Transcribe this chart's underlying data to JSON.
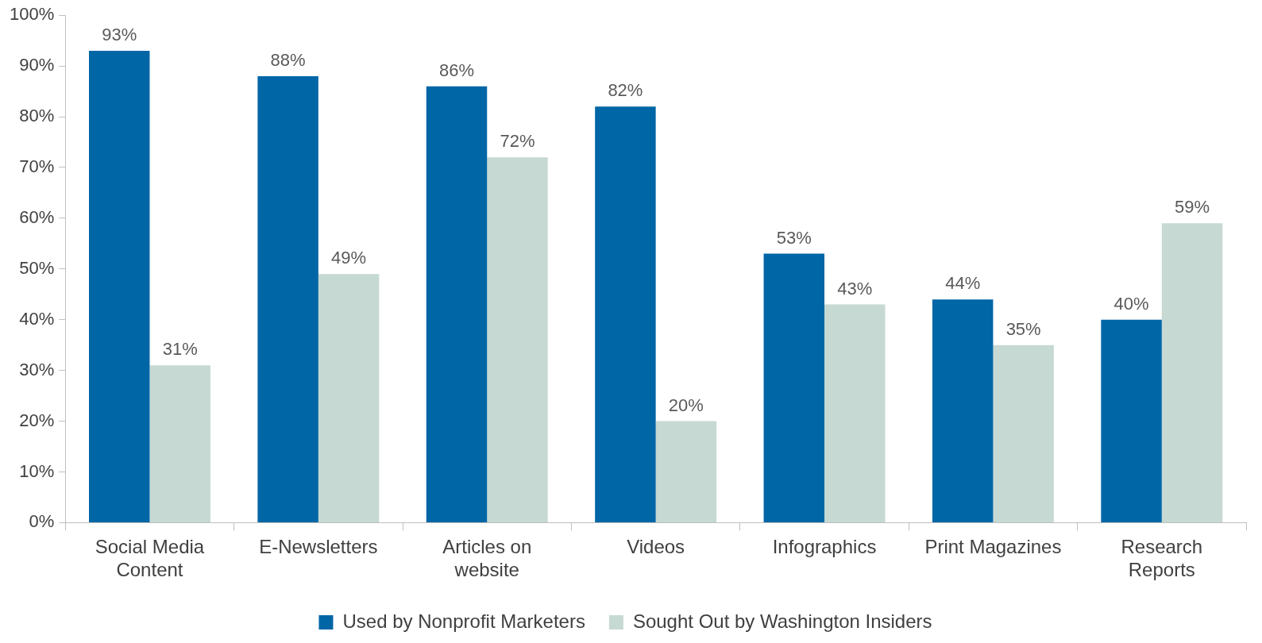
{
  "chart_data": {
    "type": "bar",
    "categories": [
      "Social Media Content",
      "E-Newsletters",
      "Articles on website",
      "Videos",
      "Infographics",
      "Print Magazines",
      "Research Reports"
    ],
    "series": [
      {
        "name": "Used by Nonprofit Marketers",
        "color": "#0066a6",
        "values": [
          93,
          88,
          86,
          82,
          53,
          44,
          40
        ],
        "value_labels": [
          "93%",
          "88%",
          "86%",
          "82%",
          "53%",
          "44%",
          "40%"
        ]
      },
      {
        "name": "Sought Out by Washington Insiders",
        "color": "#c6d9d3",
        "values": [
          31,
          49,
          72,
          20,
          43,
          35,
          59
        ],
        "value_labels": [
          "31%",
          "49%",
          "72%",
          "20%",
          "43%",
          "35%",
          "59%"
        ]
      }
    ],
    "ylim": [
      0,
      100
    ],
    "yticks": [
      {
        "value": 0,
        "label": "0%"
      },
      {
        "value": 10,
        "label": "10%"
      },
      {
        "value": 20,
        "label": "20%"
      },
      {
        "value": 30,
        "label": "30%"
      },
      {
        "value": 40,
        "label": "40%"
      },
      {
        "value": 50,
        "label": "50%"
      },
      {
        "value": 60,
        "label": "60%"
      },
      {
        "value": 70,
        "label": "70%"
      },
      {
        "value": 80,
        "label": "80%"
      },
      {
        "value": 90,
        "label": "90%"
      },
      {
        "value": 100,
        "label": "100%"
      }
    ],
    "grid": false,
    "legend": "bottom"
  }
}
